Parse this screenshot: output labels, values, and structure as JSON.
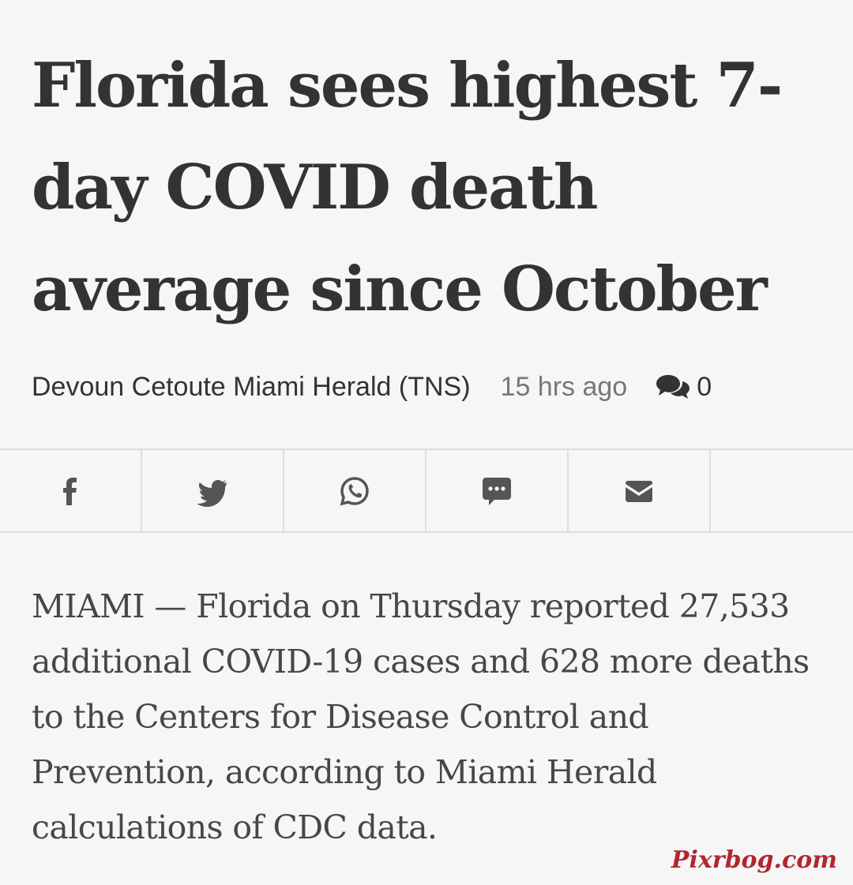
{
  "article": {
    "headline": "Florida sees highest 7-day COVID death average since October",
    "byline": "Devoun Cetoute Miami Herald (TNS)",
    "time_ago": "15 hrs ago",
    "comment_count": "0",
    "body": "MIAMI — Florida on Thursday reported 27,533 additional COVID-19 cases and 628 more deaths to the Centers for Disease Control and Prevention, according to Miami Herald calculations of CDC data."
  },
  "share_bar": {
    "icons": [
      "facebook-icon",
      "twitter-icon",
      "whatsapp-icon",
      "sms-icon",
      "email-icon"
    ]
  },
  "colors": {
    "background": "#f6f6f6",
    "text": "#333333",
    "muted": "#777777",
    "watermark": "#b3262f"
  },
  "watermark": "Pixrbog.com"
}
